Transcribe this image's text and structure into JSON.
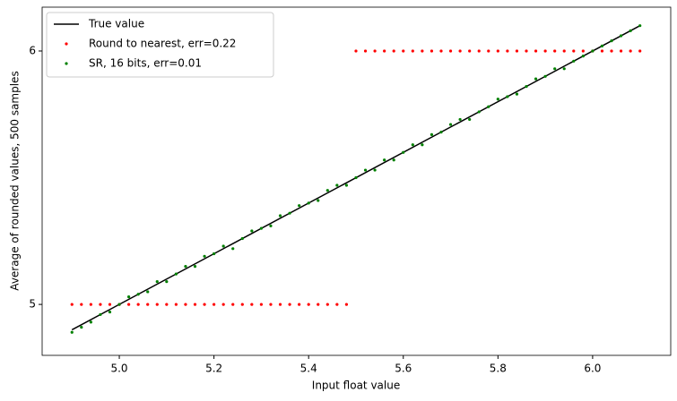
{
  "chart_data": {
    "type": "scatter",
    "xlabel": "Input float value",
    "ylabel": "Average of rounded values, 500 samples",
    "xlim": [
      4.837,
      6.165
    ],
    "ylim": [
      4.799,
      6.173
    ],
    "xticks": [
      {
        "value": 5,
        "label": "5.0"
      },
      5.2,
      5.4,
      5.6,
      5.8,
      {
        "value": 6,
        "label": "6.0"
      }
    ],
    "yticks": [
      5,
      6
    ],
    "legend": "upper left",
    "x": [
      4.9,
      4.92,
      4.94,
      4.96,
      4.98,
      5.0,
      5.02,
      5.04,
      5.06,
      5.08,
      5.1,
      5.12,
      5.14,
      5.16,
      5.18,
      5.2,
      5.22,
      5.24,
      5.26,
      5.28,
      5.3,
      5.32,
      5.34,
      5.36,
      5.38,
      5.4,
      5.42,
      5.44,
      5.46,
      5.48,
      5.5,
      5.52,
      5.54,
      5.56,
      5.58,
      5.6,
      5.62,
      5.64,
      5.66,
      5.68,
      5.7,
      5.72,
      5.74,
      5.76,
      5.78,
      5.8,
      5.82,
      5.84,
      5.86,
      5.88,
      5.9,
      5.92,
      5.94,
      5.96,
      5.98,
      6.0,
      6.02,
      6.04,
      6.06,
      6.08,
      6.1
    ],
    "series": [
      {
        "name": "True value",
        "color": "#000000",
        "style": "line",
        "x": [
          4.9,
          6.1
        ],
        "values": [
          4.9,
          6.1
        ]
      },
      {
        "name": "Round to nearest, err=0.22",
        "color": "#ff0000",
        "style": "points",
        "values": [
          5,
          5,
          5,
          5,
          5,
          5,
          5,
          5,
          5,
          5,
          5,
          5,
          5,
          5,
          5,
          5,
          5,
          5,
          5,
          5,
          5,
          5,
          5,
          5,
          5,
          5,
          5,
          5,
          5,
          5,
          6,
          6,
          6,
          6,
          6,
          6,
          6,
          6,
          6,
          6,
          6,
          6,
          6,
          6,
          6,
          6,
          6,
          6,
          6,
          6,
          6,
          6,
          6,
          6,
          6,
          6,
          6,
          6,
          6,
          6,
          6
        ]
      },
      {
        "name": "SR, 16 bits, err=0.01",
        "color": "#008000",
        "style": "points",
        "values": [
          4.89,
          4.91,
          4.93,
          4.96,
          4.97,
          5.0,
          5.03,
          5.04,
          5.05,
          5.09,
          5.09,
          5.12,
          5.15,
          5.15,
          5.19,
          5.2,
          5.23,
          5.22,
          5.26,
          5.29,
          5.3,
          5.31,
          5.35,
          5.36,
          5.39,
          5.4,
          5.41,
          5.45,
          5.47,
          5.47,
          5.5,
          5.53,
          5.53,
          5.57,
          5.57,
          5.6,
          5.63,
          5.63,
          5.67,
          5.68,
          5.71,
          5.73,
          5.73,
          5.76,
          5.78,
          5.81,
          5.82,
          5.83,
          5.86,
          5.89,
          5.9,
          5.93,
          5.93,
          5.96,
          5.98,
          6.0,
          6.02,
          6.04,
          6.06,
          6.08,
          6.1
        ]
      }
    ]
  }
}
